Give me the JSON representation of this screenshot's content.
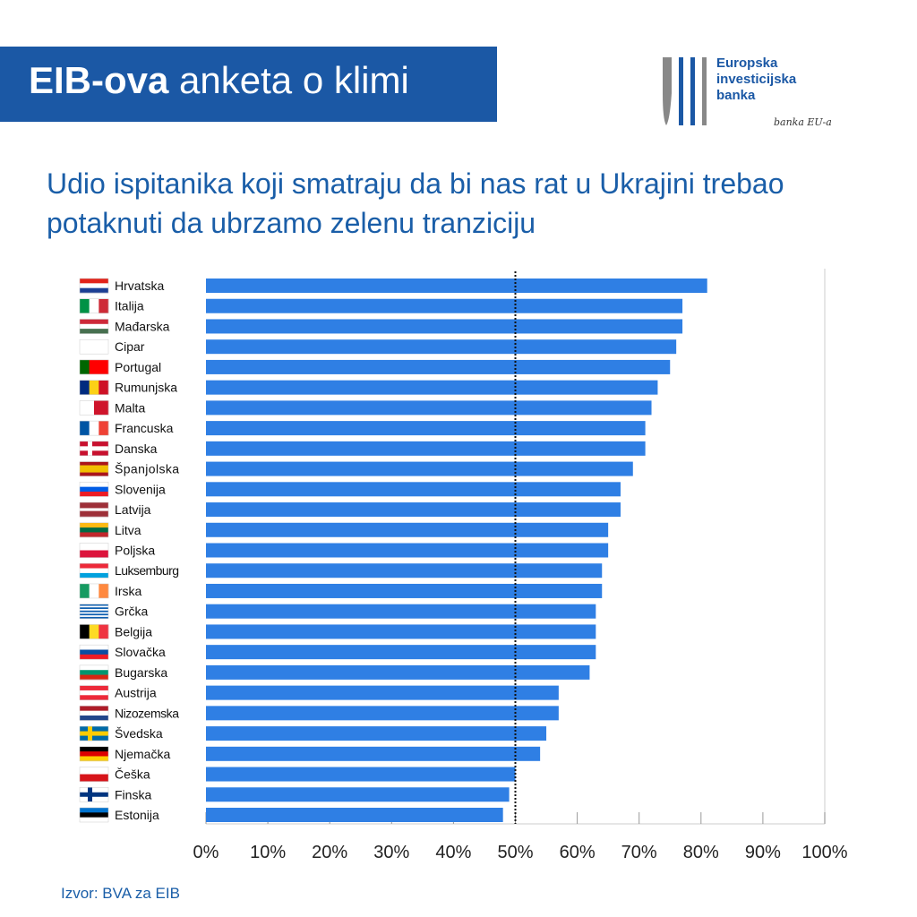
{
  "header": {
    "title_bold": "EIB-ova",
    "title_rest": " anketa o klimi"
  },
  "logo": {
    "name_lines": [
      "Europska",
      "investicijska",
      "banka"
    ],
    "tagline": "banka EU-a"
  },
  "chart_data": {
    "type": "bar",
    "orientation": "horizontal",
    "title": "Udio ispitanika koji smatraju da bi nas rat u Ukrajini trebao potaknuti da ubrzamo zelenu tranziciju",
    "categories": [
      "Hrvatska",
      "Italija",
      "Mađarska",
      "Cipar",
      "Portugal",
      "Rumunjska",
      "Malta",
      "Francuska",
      "Danska",
      "Španjolska",
      "Slovenija",
      "Latvija",
      "Litva",
      "Poljska",
      "Luksemburg",
      "Irska",
      "Grčka",
      "Belgija",
      "Slovačka",
      "Bugarska",
      "Austrija",
      "Nizozemska",
      "Švedska",
      "Njemačka",
      "Češka",
      "Finska",
      "Estonija"
    ],
    "values": [
      81,
      77,
      77,
      76,
      75,
      73,
      72,
      71,
      71,
      69,
      67,
      67,
      65,
      65,
      64,
      64,
      63,
      63,
      63,
      62,
      57,
      57,
      55,
      54,
      50,
      49,
      48
    ],
    "xlim": [
      0,
      100
    ],
    "x_ticks": [
      "0%",
      "10%",
      "20%",
      "30%",
      "40%",
      "50%",
      "60%",
      "70%",
      "80%",
      "90%",
      "100%"
    ],
    "reference_line": {
      "value": 50,
      "style": "dotted"
    },
    "bar_color": "#2f7fe4",
    "grid": false,
    "legend": "none"
  },
  "flags": {
    "Hrvatska": {
      "dir": "h",
      "c": [
        "#e2231a",
        "#ffffff",
        "#1c3f94"
      ]
    },
    "Italija": {
      "dir": "v",
      "c": [
        "#009246",
        "#ffffff",
        "#ce2b37"
      ]
    },
    "Mađarska": {
      "dir": "h",
      "c": [
        "#ce2939",
        "#ffffff",
        "#477050"
      ]
    },
    "Cipar": {
      "dir": "h",
      "c": [
        "#ffffff"
      ]
    },
    "Portugal": {
      "dir": "v",
      "c": [
        "#006600",
        "#ff0000",
        "#ff0000"
      ]
    },
    "Rumunjska": {
      "dir": "v",
      "c": [
        "#002b7f",
        "#fcd116",
        "#ce1126"
      ]
    },
    "Malta": {
      "dir": "v",
      "c": [
        "#ffffff",
        "#cf142b"
      ]
    },
    "Francuska": {
      "dir": "v",
      "c": [
        "#0055a4",
        "#ffffff",
        "#ef4135"
      ]
    },
    "Danska": {
      "dir": "cross",
      "c": [
        "#c8102e",
        "#ffffff"
      ]
    },
    "Španjolska": {
      "dir": "h",
      "c": [
        "#aa151b",
        "#f1bf00",
        "#f1bf00",
        "#aa151b"
      ]
    },
    "Slovenija": {
      "dir": "h",
      "c": [
        "#ffffff",
        "#005ce5",
        "#ed1c24"
      ]
    },
    "Latvija": {
      "dir": "h",
      "c": [
        "#9e3039",
        "#9e3039",
        "#ffffff",
        "#9e3039",
        "#9e3039"
      ]
    },
    "Litva": {
      "dir": "h",
      "c": [
        "#fdb913",
        "#006a44",
        "#c1272d"
      ]
    },
    "Poljska": {
      "dir": "h",
      "c": [
        "#ffffff",
        "#dc143c"
      ]
    },
    "Luksemburg": {
      "dir": "h",
      "c": [
        "#ed2939",
        "#ffffff",
        "#00a1de"
      ]
    },
    "Irska": {
      "dir": "v",
      "c": [
        "#169b62",
        "#ffffff",
        "#ff883e"
      ]
    },
    "Grčka": {
      "dir": "h",
      "c": [
        "#0d5eaf",
        "#ffffff",
        "#0d5eaf",
        "#ffffff",
        "#0d5eaf",
        "#ffffff",
        "#0d5eaf",
        "#ffffff",
        "#0d5eaf"
      ]
    },
    "Belgija": {
      "dir": "v",
      "c": [
        "#000000",
        "#fdda24",
        "#ef3340"
      ]
    },
    "Slovačka": {
      "dir": "h",
      "c": [
        "#ffffff",
        "#0b4ea2",
        "#ee1c25"
      ]
    },
    "Bugarska": {
      "dir": "h",
      "c": [
        "#ffffff",
        "#00966e",
        "#d62612"
      ]
    },
    "Austrija": {
      "dir": "h",
      "c": [
        "#ed2939",
        "#ffffff",
        "#ed2939"
      ]
    },
    "Nizozemska": {
      "dir": "h",
      "c": [
        "#ae1c28",
        "#ffffff",
        "#21468b"
      ]
    },
    "Švedska": {
      "dir": "cross",
      "c": [
        "#006aa7",
        "#fecc00"
      ]
    },
    "Njemačka": {
      "dir": "h",
      "c": [
        "#000000",
        "#dd0000",
        "#ffce00"
      ]
    },
    "Češka": {
      "dir": "h",
      "c": [
        "#ffffff",
        "#d7141a"
      ]
    },
    "Finska": {
      "dir": "cross",
      "c": [
        "#ffffff",
        "#003580"
      ]
    },
    "Estonija": {
      "dir": "h",
      "c": [
        "#0072ce",
        "#000000",
        "#ffffff"
      ]
    }
  },
  "source": "Izvor: BVA za EIB"
}
